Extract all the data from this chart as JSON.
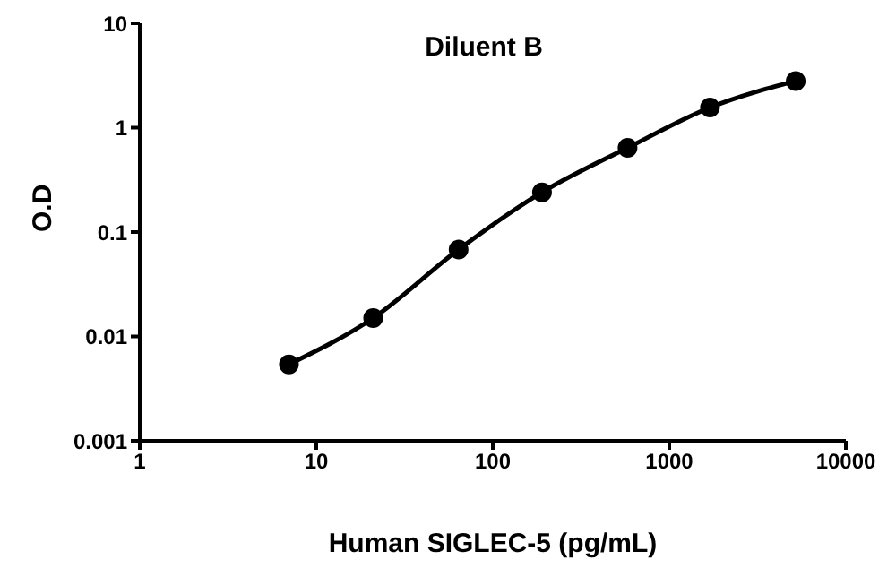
{
  "chart_data": {
    "type": "line",
    "title": "Diluent B",
    "xlabel": "Human SIGLEC-5 (pg/mL)",
    "ylabel": "O.D",
    "log": "xy",
    "x": [
      7,
      21,
      64,
      190,
      580,
      1700,
      5200
    ],
    "series": [
      {
        "color": "#000000",
        "values": [
          0.0054,
          0.015,
          0.068,
          0.24,
          0.64,
          1.56,
          2.8
        ]
      }
    ],
    "xlim": [
      1,
      10000
    ],
    "xticks": [
      1,
      10,
      100,
      1000,
      10000
    ],
    "ylim": [
      0.001,
      10
    ],
    "yticks": [
      0.001,
      0.01,
      0.1,
      1,
      10
    ],
    "grid": false,
    "legend": false,
    "marker": "circle",
    "line_style": "solid"
  }
}
